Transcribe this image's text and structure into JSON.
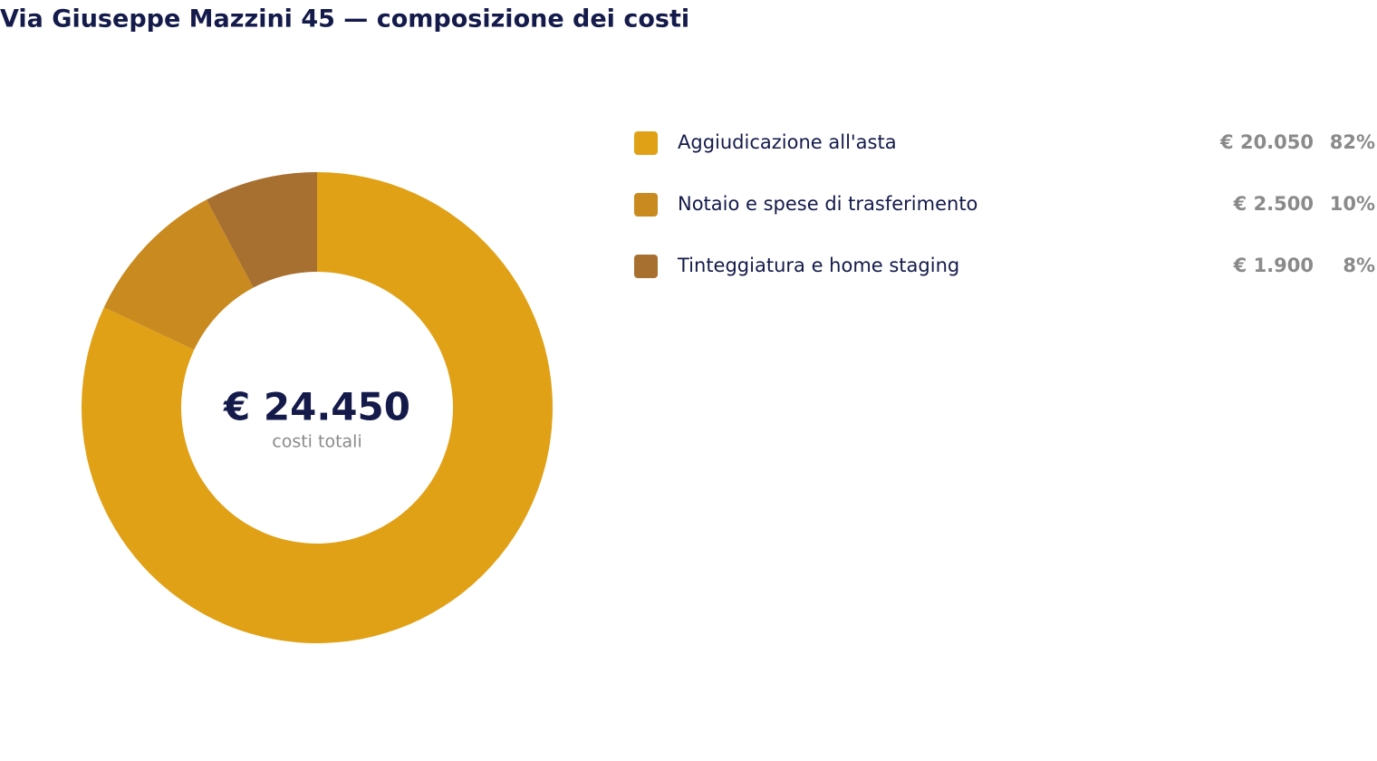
{
  "chart_data": {
    "type": "donut",
    "title": "Via Giuseppe Mazzini 45 — composizione dei costi",
    "categories": [
      "Aggiudicazione all'asta",
      "Notaio e spese di trasferimento",
      "Tinteggiatura e home staging"
    ],
    "values": [
      20050,
      2500,
      1900
    ],
    "value_labels": [
      "€ 20.050",
      "€ 2.500",
      "€ 1.900"
    ],
    "share_labels": [
      "82%",
      "10%",
      "8%"
    ],
    "colors": [
      "#e0a116",
      "#c98a1f",
      "#a87030"
    ],
    "total": {
      "value": 24450,
      "label": "€ 24.450"
    },
    "total_caption": "costi totali"
  }
}
